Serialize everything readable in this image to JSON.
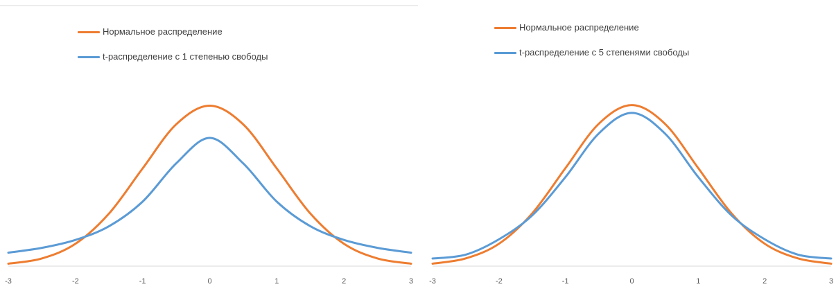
{
  "chart_data": [
    {
      "type": "line",
      "title": "",
      "xlabel": "",
      "ylabel": "",
      "xlim": [
        -3,
        3
      ],
      "x_ticks": [
        "-3",
        "-2",
        "-1",
        "0",
        "1",
        "2",
        "3"
      ],
      "grid": false,
      "legend_position": "top-left",
      "series": [
        {
          "name": "Нормальное распределение",
          "color": "#ED7D31",
          "x": [
            -3,
            -2.5,
            -2,
            -1.5,
            -1,
            -0.5,
            0,
            0.5,
            1,
            1.5,
            2,
            2.5,
            3
          ],
          "y": [
            0.0044,
            0.0175,
            0.054,
            0.1295,
            0.242,
            0.3521,
            0.3989,
            0.3521,
            0.242,
            0.1295,
            0.054,
            0.0175,
            0.0044
          ]
        },
        {
          "name": "t-распределение с 1 степенью свободы",
          "color": "#5B9BD5",
          "x": [
            -3,
            -2.5,
            -2,
            -1.5,
            -1,
            -0.5,
            0,
            0.5,
            1,
            1.5,
            2,
            2.5,
            3
          ],
          "y": [
            0.0318,
            0.0439,
            0.0637,
            0.0979,
            0.1592,
            0.2546,
            0.3183,
            0.2546,
            0.1592,
            0.0979,
            0.0637,
            0.0439,
            0.0318
          ]
        }
      ]
    },
    {
      "type": "line",
      "title": "",
      "xlabel": "",
      "ylabel": "",
      "xlim": [
        -3,
        3
      ],
      "x_ticks": [
        "-3",
        "-2",
        "-1",
        "0",
        "1",
        "2",
        "3"
      ],
      "grid": false,
      "legend_position": "top-left",
      "series": [
        {
          "name": "Нормальное распределение",
          "color": "#ED7D31",
          "x": [
            -3,
            -2.5,
            -2,
            -1.5,
            -1,
            -0.5,
            0,
            0.5,
            1,
            1.5,
            2,
            2.5,
            3
          ],
          "y": [
            0.0044,
            0.0175,
            0.054,
            0.1295,
            0.242,
            0.3521,
            0.3989,
            0.3521,
            0.242,
            0.1295,
            0.054,
            0.0175,
            0.0044
          ]
        },
        {
          "name": "t-распределение с 5 степенями свободы",
          "color": "#5B9BD5",
          "x": [
            -3,
            -2.5,
            -2,
            -1.5,
            -1,
            -0.5,
            0,
            0.5,
            1,
            1.5,
            2,
            2.5,
            3
          ],
          "y": [
            0.0173,
            0.0269,
            0.0651,
            0.1245,
            0.2197,
            0.3279,
            0.3796,
            0.3279,
            0.2197,
            0.1245,
            0.0651,
            0.0269,
            0.0173
          ]
        }
      ]
    }
  ]
}
